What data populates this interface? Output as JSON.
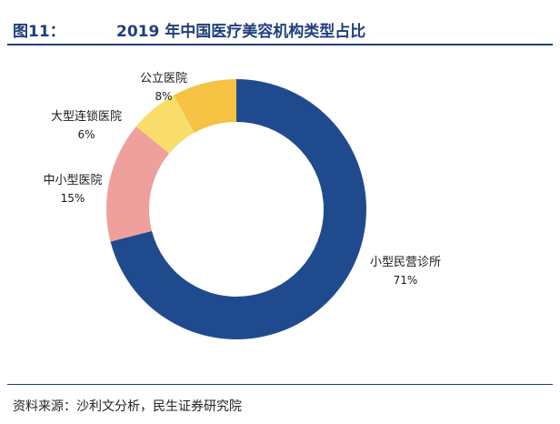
{
  "header": {
    "figure_label": "图11：",
    "title": "2019 年中国医疗美容机构类型占比"
  },
  "chart_data": {
    "type": "pie",
    "subtype": "donut",
    "title": "2019 年中国医疗美容机构类型占比",
    "categories": [
      "小型民营诊所",
      "中小型医院",
      "大型连锁医院",
      "公立医院"
    ],
    "values": [
      71,
      15,
      6,
      8
    ],
    "value_labels": [
      "71%",
      "15%",
      "6%",
      "8%"
    ],
    "colors": [
      "#1f4b8e",
      "#f0a09c",
      "#f8dd6b",
      "#f5c242"
    ],
    "unit": "%"
  },
  "footer": {
    "source": "资料来源：沙利文分析，民生证券研究院"
  }
}
